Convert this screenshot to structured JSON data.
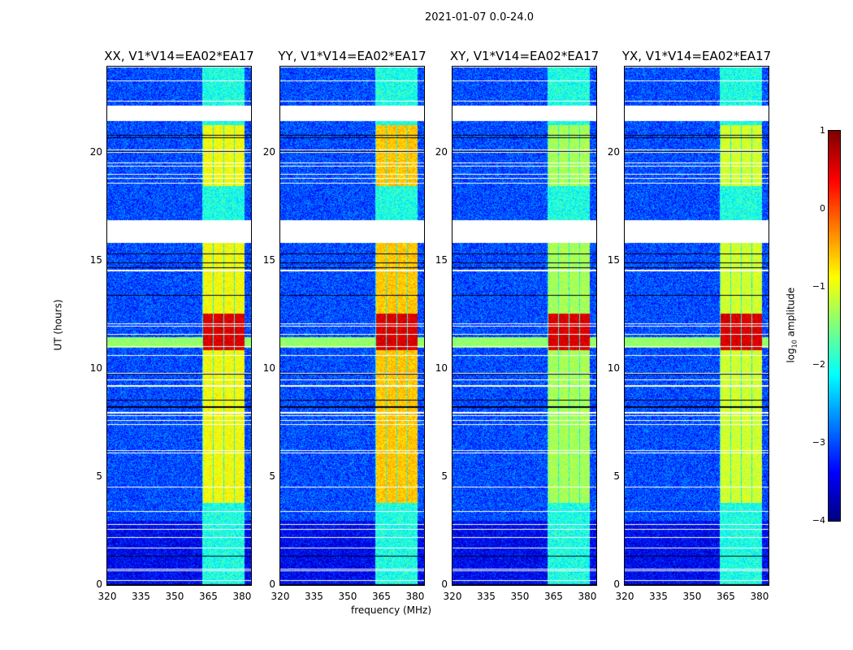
{
  "suptitle": "2021-01-07 0.0-24.0",
  "chart_data": {
    "type": "heatmap",
    "title": "2021-01-07 0.0-24.0",
    "xlabel": "frequency (MHz)",
    "ylabel": "UT (hours)",
    "xlim": [
      320,
      384
    ],
    "ylim": [
      0,
      24
    ],
    "xticks": [
      "320",
      "335",
      "350",
      "365",
      "380"
    ],
    "yticks": [
      "0",
      "5",
      "10",
      "15",
      "20"
    ],
    "panels": [
      {
        "title": "XX, V1*V14=EA02*EA17",
        "rfi_level": -0.9
      },
      {
        "title": "YY, V1*V14=EA02*EA17",
        "rfi_level": -0.6
      },
      {
        "title": "XY, V1*V14=EA02*EA17",
        "rfi_level": -1.3
      },
      {
        "title": "YX, V1*V14=EA02*EA17",
        "rfi_level": -1.1
      }
    ],
    "background_level": -3.0,
    "rfi_band_mhz": [
      362,
      381
    ],
    "gaps_ut": [
      [
        21.5,
        22.2
      ],
      [
        15.85,
        16.9
      ]
    ],
    "strong_rfi_ut": [
      [
        10.9,
        12.6
      ]
    ],
    "rfi_active_ut": [
      [
        3.8,
        16
      ],
      [
        18.5,
        21.3
      ]
    ],
    "colorbar": {
      "label": "log10 amplitude",
      "label_main": "log",
      "label_sub": "10",
      "label_rest": " amplitude",
      "min": -4,
      "max": 1,
      "ticks": [
        "1",
        "0",
        "−1",
        "−2",
        "−3",
        "−4"
      ],
      "colormap": "jet"
    }
  }
}
